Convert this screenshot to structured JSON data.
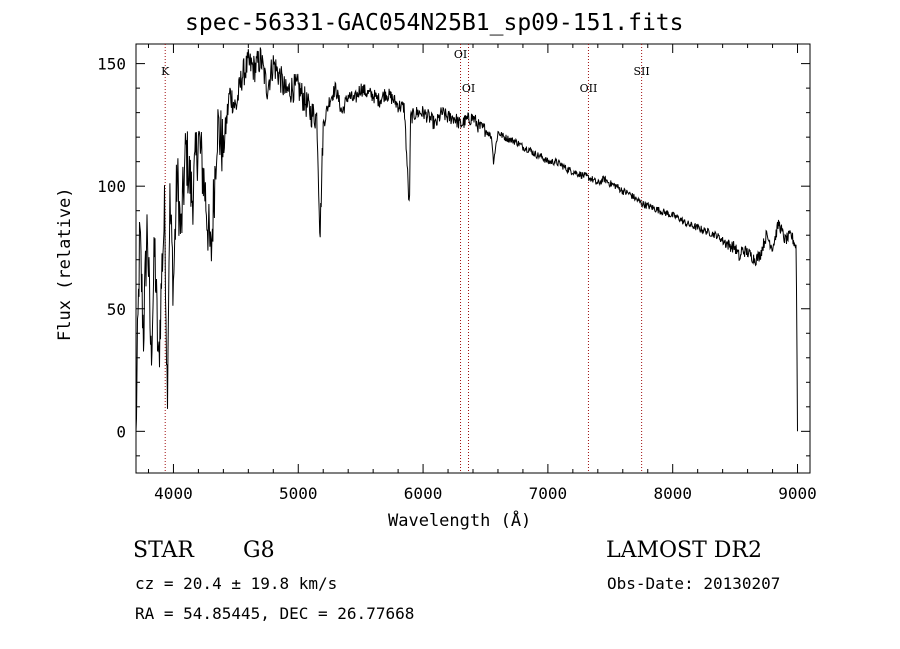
{
  "chart_data": {
    "type": "line",
    "title": "spec-56331-GAC054N25B1_sp09-151.fits",
    "xlabel": "Wavelength (Å)",
    "ylabel": "Flux (relative)",
    "xlim": [
      3700,
      9100
    ],
    "ylim": [
      -17,
      158
    ],
    "xticks": [
      4000,
      5000,
      6000,
      7000,
      8000,
      9000
    ],
    "yticks": [
      0,
      50,
      100,
      150
    ],
    "x": [
      3700,
      3730,
      3760,
      3790,
      3820,
      3850,
      3880,
      3910,
      3930,
      3950,
      3970,
      4000,
      4030,
      4060,
      4100,
      4150,
      4200,
      4250,
      4300,
      4350,
      4400,
      4450,
      4500,
      4550,
      4600,
      4650,
      4700,
      4750,
      4800,
      4850,
      4900,
      4950,
      5000,
      5050,
      5100,
      5150,
      5175,
      5200,
      5250,
      5300,
      5350,
      5400,
      5450,
      5500,
      5550,
      5600,
      5650,
      5700,
      5750,
      5800,
      5850,
      5890,
      5900,
      5950,
      6000,
      6050,
      6100,
      6150,
      6200,
      6250,
      6300,
      6350,
      6400,
      6450,
      6500,
      6550,
      6563,
      6600,
      6650,
      6700,
      6750,
      6800,
      6850,
      6900,
      6950,
      7000,
      7050,
      7100,
      7150,
      7200,
      7250,
      7300,
      7350,
      7400,
      7450,
      7500,
      7550,
      7600,
      7650,
      7700,
      7750,
      7800,
      7850,
      7900,
      7950,
      8000,
      8050,
      8100,
      8150,
      8200,
      8250,
      8300,
      8350,
      8400,
      8450,
      8500,
      8542,
      8550,
      8600,
      8662,
      8700,
      8750,
      8800,
      8850,
      8900,
      8950,
      8990,
      9000
    ],
    "series": [
      {
        "name": "flux",
        "values": [
          0,
          80,
          40,
          85,
          30,
          75,
          25,
          70,
          90,
          15,
          95,
          60,
          105,
          80,
          115,
          95,
          120,
          100,
          70,
          125,
          115,
          138,
          132,
          145,
          150,
          148,
          152,
          140,
          150,
          145,
          138,
          140,
          140,
          135,
          130,
          128,
          80,
          125,
          135,
          140,
          130,
          137,
          135,
          140,
          138,
          137,
          135,
          138,
          136,
          133,
          132,
          90,
          128,
          130,
          130,
          128,
          125,
          130,
          128,
          128,
          125,
          127,
          128,
          124,
          123,
          120,
          110,
          122,
          120,
          119,
          118,
          116,
          115,
          113,
          112,
          110,
          110,
          109,
          107,
          106,
          105,
          104,
          103,
          101,
          103,
          101,
          100,
          98,
          97,
          95,
          93,
          92,
          91,
          90,
          89,
          88,
          87,
          85,
          84,
          83,
          82,
          81,
          80,
          78,
          76,
          75,
          70,
          74,
          73,
          70,
          72,
          80,
          75,
          85,
          78,
          80,
          75,
          0
        ]
      }
    ],
    "line_markers": [
      {
        "label": "K",
        "wavelength": 3934
      },
      {
        "label": "OI",
        "wavelength": 6300
      },
      {
        "label": "OI",
        "wavelength": 6364
      },
      {
        "label": "OII",
        "wavelength": 7325
      },
      {
        "label": "SII",
        "wavelength": 7751
      }
    ],
    "grid": false
  },
  "info": {
    "object_class": "STAR",
    "subclass": "G8",
    "survey": "LAMOST DR2",
    "cz": "cz = 20.4 ± 19.8 km/s",
    "obs_date": "Obs-Date: 20130207",
    "coords": "RA =  54.85445, DEC =  26.77668"
  },
  "colors": {
    "spectrum": "#000000",
    "marker": "#a01010",
    "axes": "#000000"
  }
}
